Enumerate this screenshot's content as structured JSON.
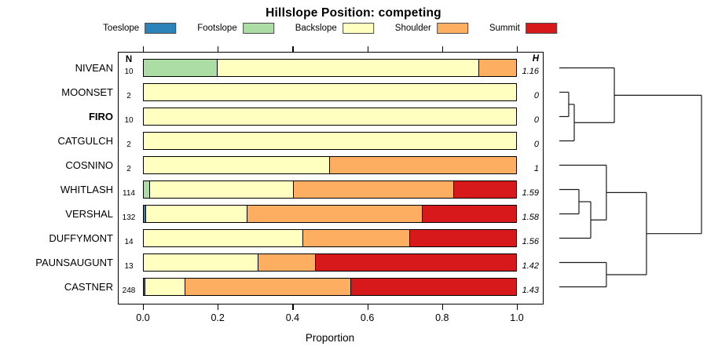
{
  "title": "Hillslope Position: competing",
  "columns": {
    "n_header": "N",
    "h_header": "H"
  },
  "axis": {
    "label": "Proportion",
    "tick_labels": [
      "0.0",
      "0.2",
      "0.4",
      "0.6",
      "0.8",
      "1.0"
    ],
    "tick_values": [
      0,
      0.2,
      0.4,
      0.6,
      0.8,
      1.0
    ]
  },
  "legend": {
    "items": [
      {
        "label": "Toeslope",
        "color": "#2B83BA"
      },
      {
        "label": "Footslope",
        "color": "#ABDDA4"
      },
      {
        "label": "Backslope",
        "color": "#FFFFBF"
      },
      {
        "label": "Shoulder",
        "color": "#FDAE61"
      },
      {
        "label": "Summit",
        "color": "#D7191C"
      }
    ]
  },
  "chart_data": {
    "type": "bar",
    "variant": "horizontal-stacked-proportion",
    "title": "Hillslope Position: competing",
    "xlabel": "Proportion",
    "xlim": [
      0,
      1
    ],
    "grid": false,
    "legend_position": "top",
    "classes": [
      "Toeslope",
      "Footslope",
      "Backslope",
      "Shoulder",
      "Summit"
    ],
    "class_colors": {
      "Toeslope": "#2B83BA",
      "Footslope": "#ABDDA4",
      "Backslope": "#FFFFBF",
      "Shoulder": "#FDAE61",
      "Summit": "#D7191C"
    },
    "categories": [
      "NIVEAN",
      "MOONSET",
      "FIRO",
      "CATGULCH",
      "COSNINO",
      "WHITLASH",
      "VERSHAL",
      "DUFFYMONT",
      "PAUNSAUGUNT",
      "CASTNER"
    ],
    "bold_category": "FIRO",
    "rows": [
      {
        "site": "NIVEAN",
        "bold": false,
        "n": "10",
        "h": "1.16",
        "segments": [
          {
            "class": "Footslope",
            "p": 0.2
          },
          {
            "class": "Backslope",
            "p": 0.7
          },
          {
            "class": "Shoulder",
            "p": 0.1
          }
        ]
      },
      {
        "site": "MOONSET",
        "bold": false,
        "n": "2",
        "h": "0",
        "segments": [
          {
            "class": "Backslope",
            "p": 1.0
          }
        ]
      },
      {
        "site": "FIRO",
        "bold": true,
        "n": "10",
        "h": "0",
        "segments": [
          {
            "class": "Backslope",
            "p": 1.0
          }
        ]
      },
      {
        "site": "CATGULCH",
        "bold": false,
        "n": "2",
        "h": "0",
        "segments": [
          {
            "class": "Backslope",
            "p": 1.0
          }
        ]
      },
      {
        "site": "COSNINO",
        "bold": false,
        "n": "2",
        "h": "1",
        "segments": [
          {
            "class": "Backslope",
            "p": 0.5
          },
          {
            "class": "Shoulder",
            "p": 0.5
          }
        ]
      },
      {
        "site": "WHITLASH",
        "bold": false,
        "n": "114",
        "h": "1.59",
        "segments": [
          {
            "class": "Footslope",
            "p": 0.018
          },
          {
            "class": "Backslope",
            "p": 0.385
          },
          {
            "class": "Shoulder",
            "p": 0.428
          },
          {
            "class": "Summit",
            "p": 0.169
          }
        ]
      },
      {
        "site": "VERSHAL",
        "bold": false,
        "n": "132",
        "h": "1.58",
        "segments": [
          {
            "class": "Toeslope",
            "p": 0.008
          },
          {
            "class": "Backslope",
            "p": 0.272
          },
          {
            "class": "Shoulder",
            "p": 0.467
          },
          {
            "class": "Summit",
            "p": 0.253
          }
        ]
      },
      {
        "site": "DUFFYMONT",
        "bold": false,
        "n": "14",
        "h": "1.56",
        "segments": [
          {
            "class": "Backslope",
            "p": 0.429
          },
          {
            "class": "Shoulder",
            "p": 0.285
          },
          {
            "class": "Summit",
            "p": 0.286
          }
        ]
      },
      {
        "site": "PAUNSAUGUNT",
        "bold": false,
        "n": "13",
        "h": "1.42",
        "segments": [
          {
            "class": "Backslope",
            "p": 0.308
          },
          {
            "class": "Shoulder",
            "p": 0.154
          },
          {
            "class": "Summit",
            "p": 0.538
          }
        ]
      },
      {
        "site": "CASTNER",
        "bold": false,
        "n": "248",
        "h": "1.43",
        "segments": [
          {
            "class": "Toeslope",
            "p": 0.006
          },
          {
            "class": "Backslope",
            "p": 0.107
          },
          {
            "class": "Shoulder",
            "p": 0.444
          },
          {
            "class": "Summit",
            "p": 0.443
          }
        ]
      }
    ]
  },
  "dendrogram": {
    "orientation": "right",
    "leaf_order": [
      "NIVEAN",
      "MOONSET",
      "FIRO",
      "CATGULCH",
      "COSNINO",
      "WHITLASH",
      "VERSHAL",
      "DUFFYMONT",
      "PAUNSAUGUNT",
      "CASTNER"
    ],
    "merges": [
      {
        "id": "A",
        "children": [
          "MOONSET",
          "FIRO"
        ],
        "height": 0.066
      },
      {
        "id": "B",
        "children": [
          "A",
          "CATGULCH"
        ],
        "height": 0.105
      },
      {
        "id": "C",
        "children": [
          "NIVEAN",
          "B"
        ],
        "height": 0.387
      },
      {
        "id": "D",
        "children": [
          "WHITLASH",
          "VERSHAL"
        ],
        "height": 0.138
      },
      {
        "id": "E",
        "children": [
          "D",
          "DUFFYMONT"
        ],
        "height": 0.221
      },
      {
        "id": "F",
        "children": [
          "COSNINO",
          "E"
        ],
        "height": 0.331
      },
      {
        "id": "G",
        "children": [
          "PAUNSAUGUNT",
          "CASTNER"
        ],
        "height": 0.331
      },
      {
        "id": "H",
        "children": [
          "F",
          "G"
        ],
        "height": 0.613
      },
      {
        "id": "ROOT",
        "children": [
          "C",
          "H"
        ],
        "height": 1.0
      }
    ]
  }
}
